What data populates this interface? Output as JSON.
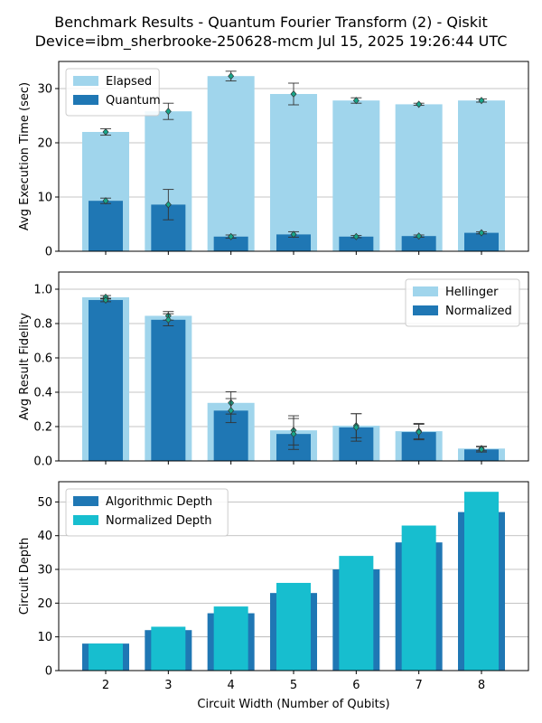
{
  "figure": {
    "title_line1": "Benchmark Results - Quantum Fourier Transform (2) - Qiskit",
    "title_line2": "Device=ibm_sherbrooke-250628-mcm  Jul 15, 2025 19:26:44 UTC"
  },
  "chart_data": [
    {
      "type": "bar",
      "ylabel": "Avg Execution Time (sec)",
      "xlabel": "",
      "categories": [
        "2",
        "3",
        "4",
        "5",
        "6",
        "7",
        "8"
      ],
      "ylim": [
        0,
        35
      ],
      "yticks": [
        0,
        10,
        20,
        30
      ],
      "grid": true,
      "legend": "top-left",
      "series": [
        {
          "name": "Elapsed",
          "values": [
            22.0,
            25.8,
            32.3,
            29.0,
            27.8,
            27.1,
            27.8
          ],
          "errors": [
            0.6,
            1.5,
            0.9,
            2.0,
            0.5,
            0.2,
            0.3
          ],
          "color": "#a0d5ec",
          "style": "wide"
        },
        {
          "name": "Quantum",
          "values": [
            9.3,
            8.6,
            2.7,
            3.1,
            2.7,
            2.8,
            3.4
          ],
          "errors": [
            0.5,
            2.8,
            0.3,
            0.5,
            0.2,
            0.2,
            0.2
          ],
          "color": "#1f77b4",
          "style": "narrow"
        }
      ]
    },
    {
      "type": "bar",
      "ylabel": "Avg Result Fidelity",
      "xlabel": "",
      "categories": [
        "2",
        "3",
        "4",
        "5",
        "6",
        "7",
        "8"
      ],
      "ylim": [
        0,
        1.1
      ],
      "yticks": [
        0.0,
        0.2,
        0.4,
        0.6,
        0.8,
        1.0
      ],
      "grid": true,
      "legend": "top-right",
      "series": [
        {
          "name": "Hellinger",
          "values": [
            0.953,
            0.845,
            0.338,
            0.178,
            0.205,
            0.173,
            0.072
          ],
          "errors": [
            0.01,
            0.025,
            0.065,
            0.085,
            0.07,
            0.045,
            0.013
          ],
          "color": "#a0d5ec",
          "style": "wide"
        },
        {
          "name": "Normalized",
          "values": [
            0.937,
            0.822,
            0.293,
            0.157,
            0.195,
            0.168,
            0.067
          ],
          "errors": [
            0.01,
            0.035,
            0.07,
            0.09,
            0.08,
            0.045,
            0.015
          ],
          "color": "#1f77b4",
          "style": "narrow"
        }
      ]
    },
    {
      "type": "bar",
      "ylabel": "Circuit Depth",
      "xlabel": "Circuit Width (Number of Qubits)",
      "categories": [
        "2",
        "3",
        "4",
        "5",
        "6",
        "7",
        "8"
      ],
      "ylim": [
        0,
        56
      ],
      "yticks": [
        0,
        10,
        20,
        30,
        40,
        50
      ],
      "grid": true,
      "legend": "top-left",
      "series": [
        {
          "name": "Algorithmic Depth",
          "values": [
            8,
            12,
            17,
            23,
            30,
            38,
            47
          ],
          "color": "#1f77b4",
          "style": "wide"
        },
        {
          "name": "Normalized Depth",
          "values": [
            8,
            13,
            19,
            26,
            34,
            43,
            53
          ],
          "color": "#17becf",
          "style": "narrow"
        }
      ]
    }
  ]
}
